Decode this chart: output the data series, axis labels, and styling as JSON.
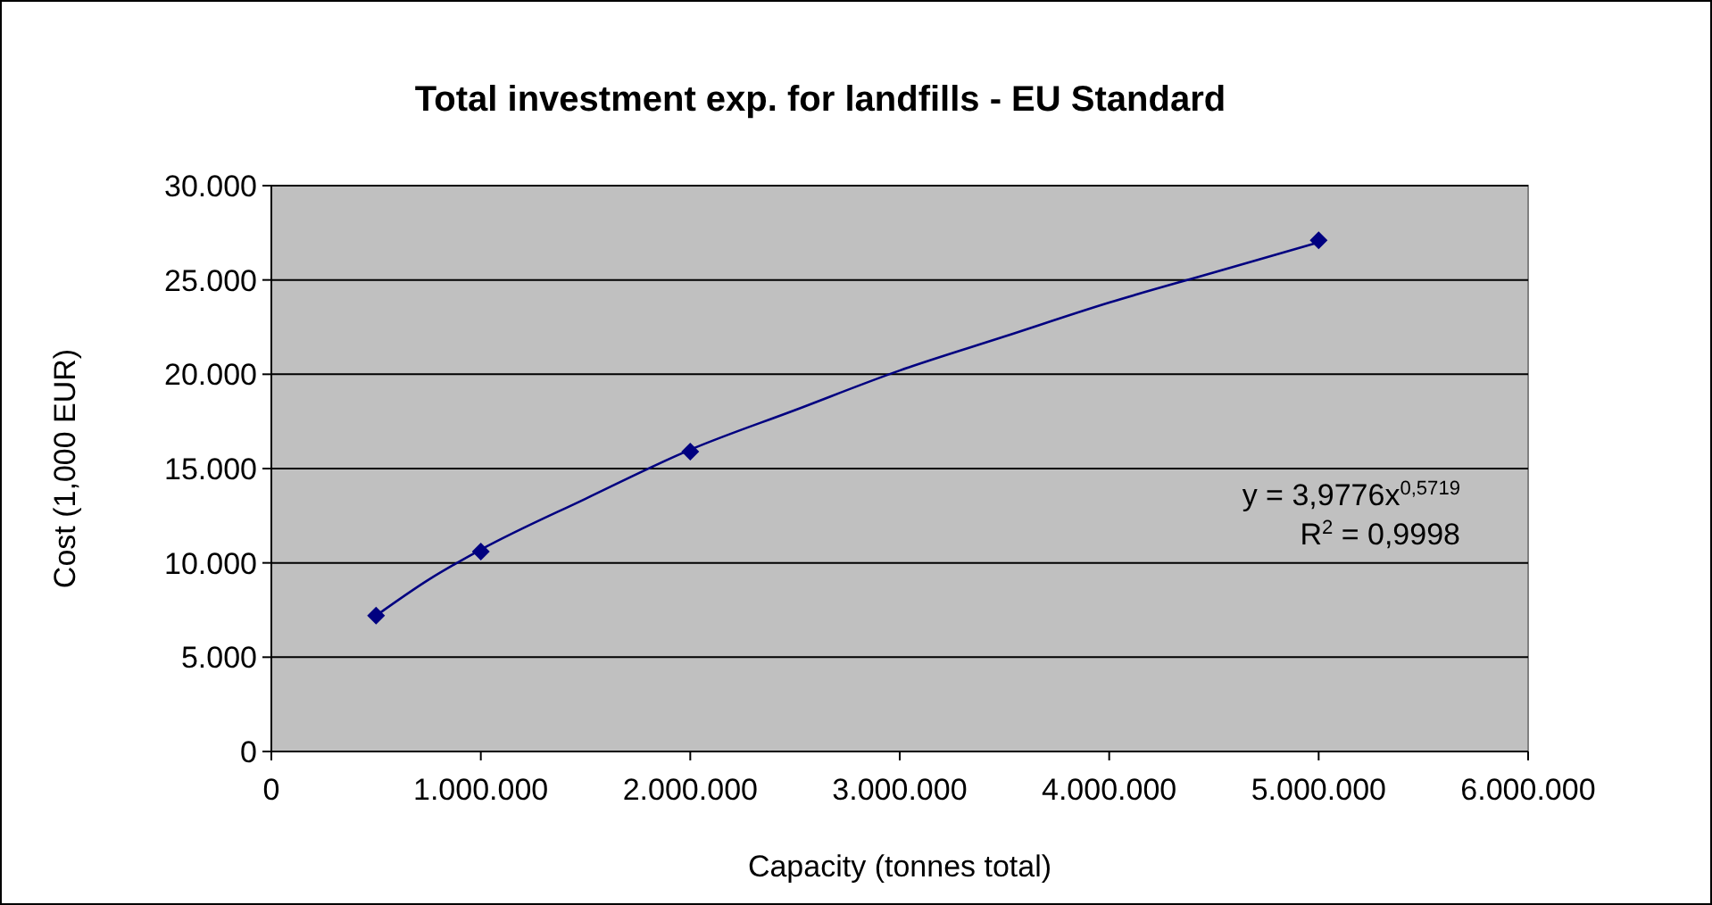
{
  "chart_data": {
    "type": "scatter",
    "title": "Total investment exp. for landfills - EU Standard",
    "xlabel": "Capacity (tonnes total)",
    "ylabel": "Cost (1,000 EUR)",
    "xlim": [
      0,
      6000000
    ],
    "ylim": [
      0,
      30000
    ],
    "xticks": [
      0,
      {
        "value": 1000000,
        "label": "1.000.000"
      },
      {
        "value": 2000000,
        "label": "2.000.000"
      },
      {
        "value": 3000000,
        "label": "3.000.000"
      },
      {
        "value": 4000000,
        "label": "4.000.000"
      },
      {
        "value": 5000000,
        "label": "5.000.000"
      },
      {
        "value": 6000000,
        "label": "6.000.000"
      }
    ],
    "yticks": [
      0,
      {
        "value": 5000,
        "label": "5.000"
      },
      {
        "value": 10000,
        "label": "10.000"
      },
      {
        "value": 15000,
        "label": "15.000"
      },
      {
        "value": 20000,
        "label": "20.000"
      },
      {
        "value": 25000,
        "label": "25.000"
      },
      {
        "value": 30000,
        "label": "30.000"
      }
    ],
    "grid": "y",
    "series": [
      {
        "type": "scatter",
        "color": "#000080",
        "marker": "diamond",
        "x": [
          500000,
          1000000,
          2000000,
          5000000
        ],
        "values": [
          7200,
          10600,
          15900,
          27100
        ]
      },
      {
        "type": "line",
        "color": "#000080",
        "marker": "none",
        "line_style": "solid",
        "x": [
          500000,
          750000,
          1000000,
          1500000,
          2000000,
          2500000,
          3000000,
          3500000,
          4000000,
          4500000,
          5000000
        ],
        "values": [
          7200,
          9100,
          10700,
          13400,
          16000,
          18100,
          20200,
          22000,
          23800,
          25400,
          27000
        ]
      }
    ],
    "annotations": [
      "y = 3,9776x$^{0,5719}$",
      "R$^{2}$ = 0,9998"
    ]
  }
}
